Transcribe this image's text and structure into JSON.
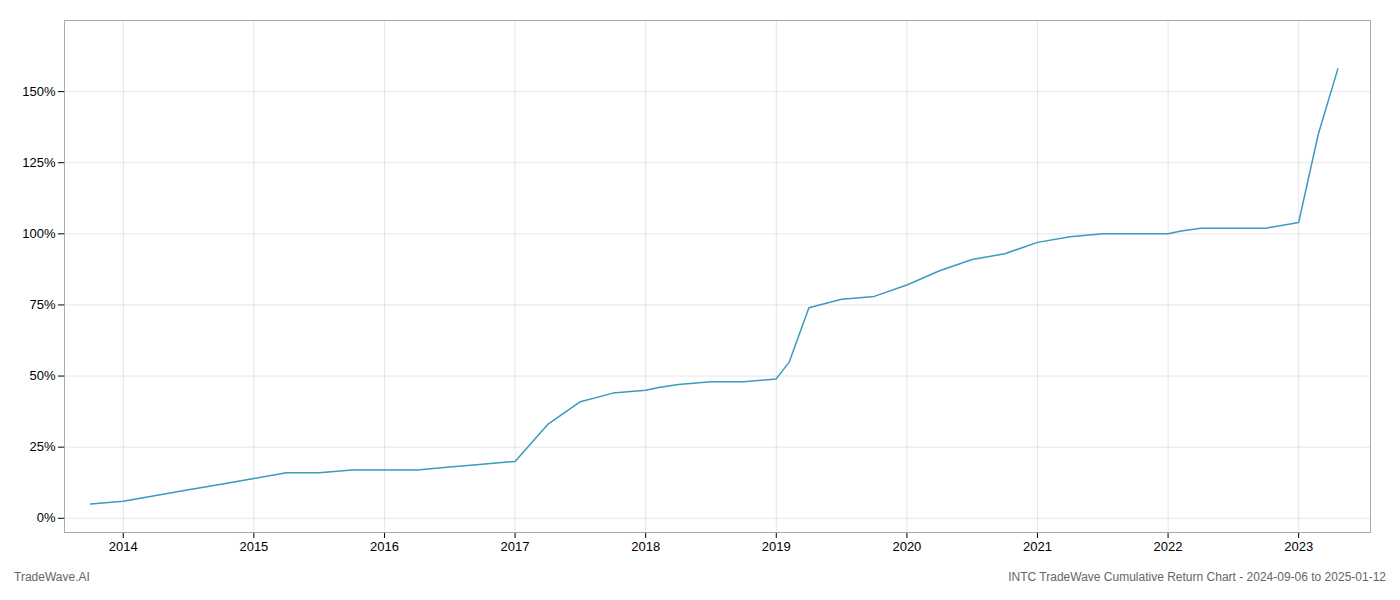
{
  "chart_data": {
    "type": "line",
    "title": "INTC TradeWave Cumulative Return Chart - 2024-09-06 to 2025-01-12",
    "annotations": [
      "TradeWave.AI"
    ],
    "color": "#3a9abf",
    "x": [
      2013.75,
      2014.0,
      2014.25,
      2014.5,
      2014.75,
      2015.0,
      2015.25,
      2015.5,
      2015.75,
      2016.0,
      2016.25,
      2016.5,
      2016.75,
      2017.0,
      2017.25,
      2017.5,
      2017.75,
      2018.0,
      2018.1,
      2018.25,
      2018.5,
      2018.75,
      2019.0,
      2019.1,
      2019.25,
      2019.5,
      2019.75,
      2020.0,
      2020.25,
      2020.5,
      2020.75,
      2021.0,
      2021.25,
      2021.5,
      2021.75,
      2022.0,
      2022.1,
      2022.25,
      2022.5,
      2022.75,
      2023.0,
      2023.15,
      2023.3
    ],
    "values": [
      5,
      6,
      8,
      10,
      12,
      14,
      16,
      16,
      17,
      17,
      17,
      18,
      19,
      20,
      33,
      41,
      44,
      45,
      46,
      47,
      48,
      48,
      49,
      55,
      74,
      77,
      78,
      82,
      87,
      91,
      93,
      97,
      99,
      100,
      100,
      100,
      101,
      102,
      102,
      102,
      104,
      135,
      158
    ],
    "xlim": [
      2013.55,
      2023.55
    ],
    "xticks": [
      2014,
      2015,
      2016,
      2017,
      2018,
      2019,
      2020,
      2021,
      2022,
      2023
    ],
    "ylim": [
      -5,
      175
    ],
    "yticks": [
      {
        "value": 0,
        "label": "0%"
      },
      {
        "value": 25,
        "label": "25%"
      },
      {
        "value": 50,
        "label": "50%"
      },
      {
        "value": 75,
        "label": "75%"
      },
      {
        "value": 100,
        "label": "100%"
      },
      {
        "value": 125,
        "label": "125%"
      },
      {
        "value": 150,
        "label": "150%"
      }
    ],
    "grid": true
  }
}
